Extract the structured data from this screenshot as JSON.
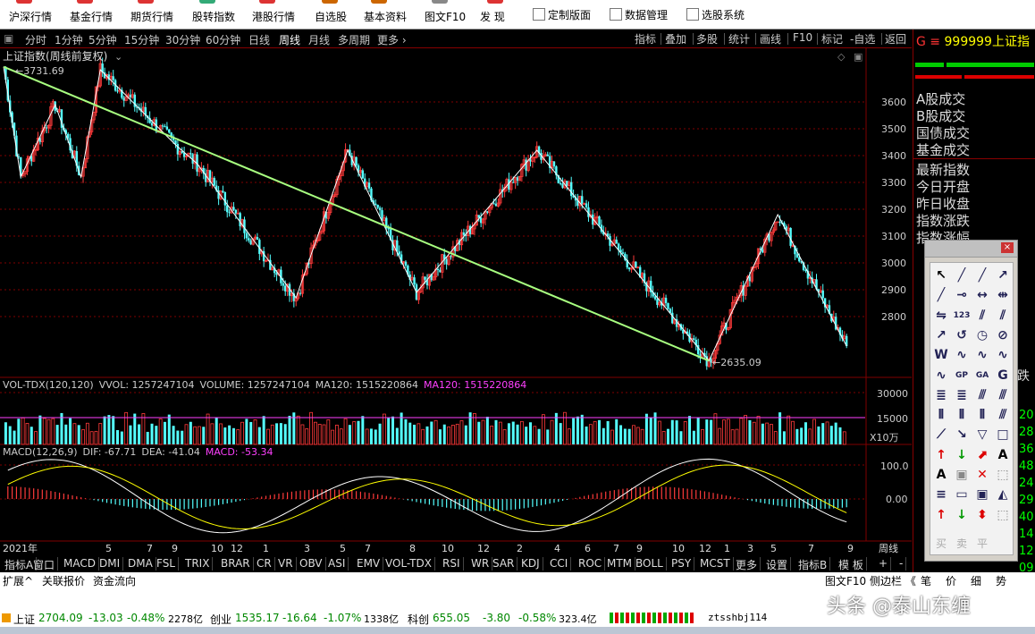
{
  "toolbar": {
    "items": [
      {
        "label": "沪深行情",
        "color": "#d33"
      },
      {
        "label": "基金行情",
        "color": "#d33"
      },
      {
        "label": "期货行情",
        "color": "#d33"
      },
      {
        "label": "股转指数",
        "color": "#3a7"
      },
      {
        "label": "港股行情",
        "color": "#d33"
      },
      {
        "label": "自选股",
        "color": "#c60"
      },
      {
        "label": "基本资料",
        "color": "#c60"
      },
      {
        "label": "图文F10",
        "color": "#888"
      },
      {
        "label": "发  现",
        "color": "#d33"
      }
    ],
    "right": [
      "定制版面",
      "数据管理",
      "选股系统"
    ]
  },
  "period_bar": {
    "items": [
      "分时",
      "1分钟",
      "5分钟",
      "15分钟",
      "30分钟",
      "60分钟",
      "日线",
      "周线",
      "月线",
      "多周期",
      "更多"
    ],
    "selected": "周线",
    "right": [
      "指标",
      "叠加",
      "多股",
      "统计",
      "画线",
      "F10",
      "标记",
      "-自选",
      "返回"
    ]
  },
  "main_chart": {
    "title": "上证指数(周线前复权)",
    "high_label": "3731.69",
    "low_label": "2635.09",
    "y_ticks": [
      "3600",
      "3500",
      "3400",
      "3300",
      "3200",
      "3100",
      "3000",
      "2900",
      "2800"
    ]
  },
  "volume_panel": {
    "label_prefix": "VOL-TDX(120,120)",
    "vvol": "VVOL: 1257247104",
    "volume": "VOLUME: 1257247104",
    "ma120": "MA120: 1515220864",
    "ma120b": "MA120: 1515220864",
    "y_ticks": [
      "30000",
      "15000"
    ],
    "unit": "X10万"
  },
  "macd_panel": {
    "label": "MACD(12,26,9)",
    "dif": "DIF: -67.71",
    "dea": "DEA: -41.04",
    "macd": "MACD: -53.34",
    "y_ticks": [
      "100.0",
      "0.00"
    ]
  },
  "x_axis": {
    "year_label": "2021年",
    "months": [
      "5",
      "7",
      "9",
      "10",
      "12",
      "1",
      "3",
      "5",
      "7",
      "8",
      "10",
      "12",
      "2",
      "4",
      "6",
      "7",
      "9",
      "10",
      "12",
      "1",
      "3",
      "5",
      "7",
      "9"
    ],
    "period": "周线"
  },
  "right_panel": {
    "header_code": "999999",
    "header_name": "上证指",
    "header_prefix": "G",
    "rows": [
      "A股成交",
      "B股成交",
      "国债成交",
      "基金成交",
      "最新指数",
      "今日开盘",
      "昨日收盘",
      "指数涨跌",
      "指数涨幅"
    ],
    "partial_right": [
      "跌",
      "20",
      "28",
      "36",
      "48",
      "24",
      "29",
      "40",
      "14",
      "12",
      "09"
    ],
    "bottom_tabs": [
      "笔",
      "价",
      "细",
      "势"
    ]
  },
  "indicator_tabs": [
    "指标A",
    "窗口",
    "MACD",
    "DMI",
    "DMA",
    "FSL",
    "TRIX",
    "BRAR",
    "CR",
    "VR",
    "OBV",
    "ASI",
    "EMV",
    "VOL-TDX",
    "RSI",
    "WR",
    "SAR",
    "KDJ",
    "CCI",
    "ROC",
    "MTM",
    "BOLL",
    "PSY",
    "MCST",
    "更多",
    "设置"
  ],
  "indicator_tabs_right": [
    "指标B",
    "模  板",
    "+",
    "-"
  ],
  "bottom_tabs2": [
    "扩展^",
    "关联报价",
    "资金流向"
  ],
  "bottom_tabs2_right": [
    "图文F10",
    "侧边栏 《"
  ],
  "status_bar": {
    "sh_name": "上证",
    "sh_val": "2704.09",
    "sh_chg": "-13.03",
    "sh_pct": "-0.48%",
    "sh_amt": "2278亿",
    "cy_name": "创业",
    "cy_val": "1535.17",
    "cy_chg": "-16.64",
    "cy_pct": "-1.07%",
    "cy_amt": "1338亿",
    "kc_name": "科创",
    "kc_val": "655.05",
    "kc_chg": "-3.80",
    "kc_pct": "-0.58%",
    "kc_amt": "323.4亿",
    "user": "ztsshbj114"
  },
  "watermark": "头条 @泰山东缠",
  "colors": {
    "up": "#ff3b3b",
    "down": "#54ffff",
    "zigzag": "#ffffff",
    "trendline": "#a8ff80",
    "ma120": "#ff40ff",
    "dif": "#ffffff",
    "dea": "#ffff00",
    "grid": "#800000"
  },
  "toolbox": {
    "labels": [
      "买",
      "卖",
      "平"
    ]
  }
}
